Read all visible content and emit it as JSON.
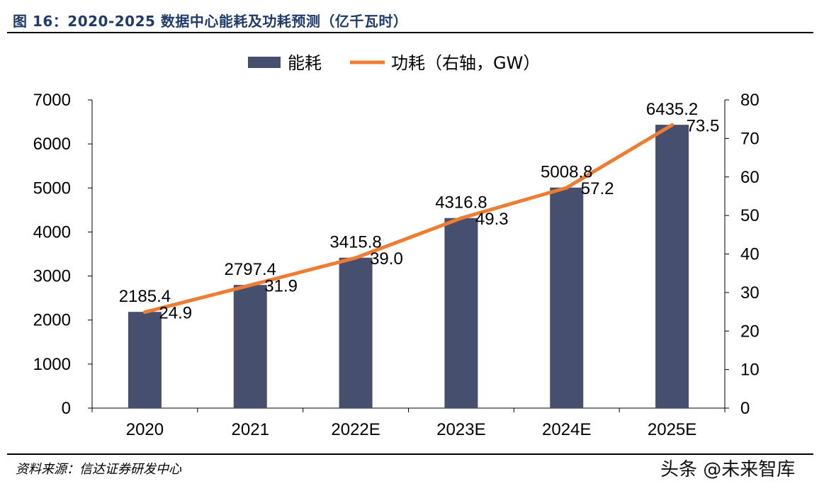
{
  "figure": {
    "header": "图 16：2020-2025 数据中心能耗及功耗预测（亿千瓦时）",
    "source": "资料来源：信达证券研发中心",
    "watermark": "头条 @未来智库"
  },
  "colors": {
    "bar": "#46506e",
    "line": "#ef7d31",
    "text": "#000000",
    "header": "#1f3b6d"
  },
  "chart_data": {
    "type": "bar",
    "title": "",
    "categories": [
      "2020",
      "2021",
      "2022E",
      "2023E",
      "2024E",
      "2025E"
    ],
    "series": [
      {
        "name": "能耗",
        "type": "bar",
        "axis": "left",
        "values": [
          2185.4,
          2797.4,
          3415.8,
          4316.8,
          5008.8,
          6435.2
        ],
        "labels": [
          "2185.4",
          "2797.4",
          "3415.8",
          "4316.8",
          "5008.8",
          "6435.2"
        ]
      },
      {
        "name": "功耗（右轴，GW）",
        "type": "line",
        "axis": "right",
        "values": [
          24.9,
          31.9,
          39.0,
          49.3,
          57.2,
          73.5
        ],
        "labels": [
          "24.9",
          "31.9",
          "39.0",
          "49.3",
          "57.2",
          "73.5"
        ]
      }
    ],
    "y_left": {
      "lim": [
        0,
        7000
      ],
      "ticks": [
        "0",
        "1000",
        "2000",
        "3000",
        "4000",
        "5000",
        "6000",
        "7000"
      ]
    },
    "y_right": {
      "lim": [
        0,
        80
      ],
      "ticks": [
        "0",
        "10",
        "20",
        "30",
        "40",
        "50",
        "60",
        "70",
        "80"
      ]
    },
    "grid": false,
    "legend": "top-center"
  }
}
